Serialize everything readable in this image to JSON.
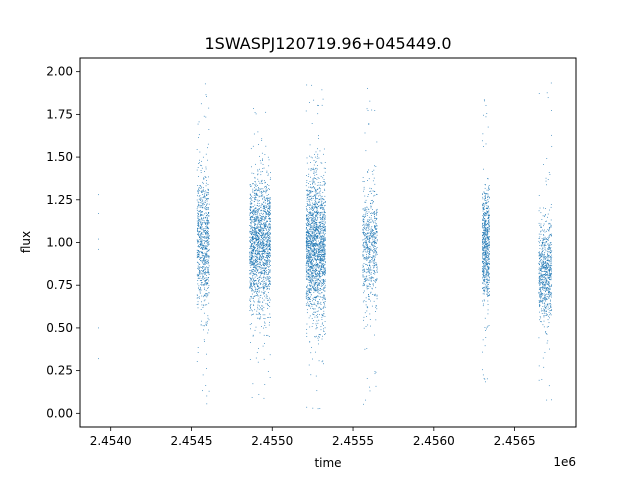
{
  "chart_data": {
    "type": "scatter",
    "title": "1SWASPJ120719.96+045449.0",
    "xlabel": "time",
    "ylabel": "flux",
    "x_offset_label": "1e6",
    "xlim": [
      2453810,
      2456880
    ],
    "ylim": [
      -0.08,
      2.08
    ],
    "x_ticks": [
      {
        "value": 2454000,
        "label": "2.4540"
      },
      {
        "value": 2454500,
        "label": "2.4545"
      },
      {
        "value": 2455000,
        "label": "2.4550"
      },
      {
        "value": 2455500,
        "label": "2.4555"
      },
      {
        "value": 2456000,
        "label": "2.4560"
      },
      {
        "value": 2456500,
        "label": "2.4565"
      }
    ],
    "y_ticks": [
      {
        "value": 0.0,
        "label": "0.00"
      },
      {
        "value": 0.25,
        "label": "0.25"
      },
      {
        "value": 0.5,
        "label": "0.50"
      },
      {
        "value": 0.75,
        "label": "0.75"
      },
      {
        "value": 1.0,
        "label": "1.00"
      },
      {
        "value": 1.25,
        "label": "1.25"
      },
      {
        "value": 1.5,
        "label": "1.50"
      },
      {
        "value": 1.75,
        "label": "1.75"
      },
      {
        "value": 2.0,
        "label": "2.00"
      }
    ],
    "grid": false,
    "legend": "none",
    "marker_color": "#1f77b4",
    "series": [
      {
        "seasons": [
          {
            "x_start": 2454535,
            "x_end": 2454610,
            "mean": 1.0,
            "spread": 0.2,
            "min": 0.05,
            "max": 1.95,
            "density": 750
          },
          {
            "x_start": 2454860,
            "x_end": 2454990,
            "mean": 0.98,
            "spread": 0.2,
            "min": 0.08,
            "max": 1.97,
            "density": 1600
          },
          {
            "x_start": 2455210,
            "x_end": 2455330,
            "mean": 0.97,
            "spread": 0.22,
            "min": 0.02,
            "max": 1.96,
            "density": 1800
          },
          {
            "x_start": 2455560,
            "x_end": 2455650,
            "mean": 0.98,
            "spread": 0.17,
            "min": 0.01,
            "max": 1.96,
            "density": 600
          },
          {
            "x_start": 2456300,
            "x_end": 2456345,
            "mean": 0.98,
            "spread": 0.16,
            "min": 0.12,
            "max": 1.85,
            "density": 650
          },
          {
            "x_start": 2456650,
            "x_end": 2456730,
            "mean": 0.83,
            "spread": 0.15,
            "min": 0.03,
            "max": 1.95,
            "density": 700
          }
        ],
        "isolated_points": [
          {
            "x": 2453925,
            "y": 1.28
          },
          {
            "x": 2453925,
            "y": 1.17
          },
          {
            "x": 2453925,
            "y": 1.02
          },
          {
            "x": 2453925,
            "y": 0.96
          },
          {
            "x": 2453925,
            "y": 0.5
          },
          {
            "x": 2453925,
            "y": 0.32
          }
        ]
      }
    ]
  }
}
